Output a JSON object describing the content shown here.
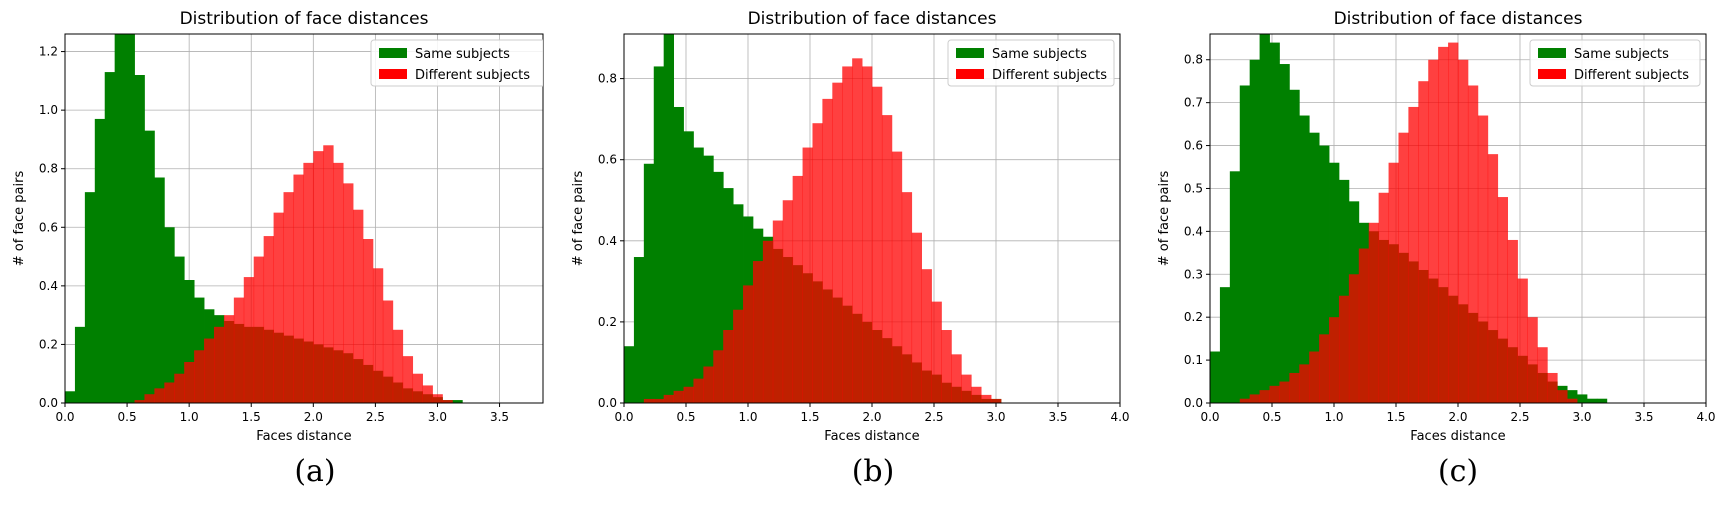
{
  "chart_data": [
    {
      "type": "histogram",
      "title": "Distribution of face distances",
      "xlabel": "Faces distance",
      "ylabel": "# of face pairs",
      "caption": "(a)",
      "xlim": [
        0,
        3.85
      ],
      "ylim": [
        0,
        1.26
      ],
      "xticks": [
        "0.0",
        "0.5",
        "1.0",
        "1.5",
        "2.0",
        "2.5",
        "3.0",
        "3.5"
      ],
      "xtick_values": [
        0,
        0.5,
        1,
        1.5,
        2,
        2.5,
        3,
        3.5
      ],
      "yticks": [
        "0.0",
        "0.2",
        "0.4",
        "0.6",
        "0.8",
        "1.0",
        "1.2"
      ],
      "ytick_values": [
        0,
        0.2,
        0.4,
        0.6,
        0.8,
        1.0,
        1.2
      ],
      "grid": true,
      "legend_position": "top-right",
      "bin_width": 0.08,
      "series": [
        {
          "name": "Same subjects",
          "color": "#008000",
          "opacity": 1.0,
          "x_start": 0.0,
          "values": [
            0.04,
            0.26,
            0.72,
            0.97,
            1.13,
            1.29,
            1.34,
            1.12,
            0.93,
            0.77,
            0.6,
            0.5,
            0.42,
            0.36,
            0.32,
            0.3,
            0.28,
            0.27,
            0.26,
            0.26,
            0.25,
            0.24,
            0.23,
            0.22,
            0.21,
            0.2,
            0.19,
            0.18,
            0.17,
            0.15,
            0.13,
            0.11,
            0.09,
            0.07,
            0.05,
            0.04,
            0.03,
            0.02,
            0.01,
            0.01,
            0.0,
            0.0,
            0.0,
            0.0,
            0.0,
            0.0,
            0.0,
            0.0
          ]
        },
        {
          "name": "Different subjects",
          "color": "#ff0000",
          "opacity": 0.75,
          "x_start": 0.0,
          "values": [
            0.0,
            0.0,
            0.0,
            0.0,
            0.0,
            0.0,
            0.0,
            0.01,
            0.03,
            0.05,
            0.07,
            0.1,
            0.14,
            0.18,
            0.22,
            0.26,
            0.3,
            0.36,
            0.43,
            0.5,
            0.57,
            0.65,
            0.72,
            0.78,
            0.82,
            0.86,
            0.88,
            0.82,
            0.75,
            0.66,
            0.56,
            0.46,
            0.35,
            0.25,
            0.16,
            0.1,
            0.06,
            0.03,
            0.01,
            0.0,
            0.0,
            0.0,
            0.0,
            0.0,
            0.0,
            0.0,
            0.0,
            0.0
          ]
        }
      ]
    },
    {
      "type": "histogram",
      "title": "Distribution of face distances",
      "xlabel": "Faces distance",
      "ylabel": "# of face pairs",
      "caption": "(b)",
      "xlim": [
        0,
        4.0
      ],
      "ylim": [
        0,
        0.91
      ],
      "xticks": [
        "0.0",
        "0.5",
        "1.0",
        "1.5",
        "2.0",
        "2.5",
        "3.0",
        "3.5",
        "4.0"
      ],
      "xtick_values": [
        0,
        0.5,
        1,
        1.5,
        2,
        2.5,
        3,
        3.5,
        4
      ],
      "yticks": [
        "0.0",
        "0.2",
        "0.4",
        "0.6",
        "0.8"
      ],
      "ytick_values": [
        0,
        0.2,
        0.4,
        0.6,
        0.8
      ],
      "grid": true,
      "legend_position": "top-right",
      "bin_width": 0.08,
      "series": [
        {
          "name": "Same subjects",
          "color": "#008000",
          "opacity": 1.0,
          "x_start": 0.0,
          "values": [
            0.14,
            0.36,
            0.59,
            0.83,
            0.92,
            0.73,
            0.67,
            0.63,
            0.61,
            0.57,
            0.53,
            0.49,
            0.46,
            0.43,
            0.41,
            0.38,
            0.36,
            0.34,
            0.32,
            0.3,
            0.28,
            0.26,
            0.24,
            0.22,
            0.2,
            0.18,
            0.16,
            0.14,
            0.12,
            0.1,
            0.08,
            0.07,
            0.05,
            0.04,
            0.03,
            0.02,
            0.01,
            0.01,
            0.0,
            0.0,
            0.0,
            0.0,
            0.0,
            0.0,
            0.0,
            0.0,
            0.0,
            0.0,
            0.0,
            0.0
          ]
        },
        {
          "name": "Different subjects",
          "color": "#ff0000",
          "opacity": 0.75,
          "x_start": 0.0,
          "values": [
            0.0,
            0.0,
            0.01,
            0.01,
            0.02,
            0.03,
            0.04,
            0.06,
            0.09,
            0.13,
            0.18,
            0.23,
            0.29,
            0.35,
            0.4,
            0.45,
            0.5,
            0.56,
            0.63,
            0.69,
            0.75,
            0.79,
            0.83,
            0.85,
            0.83,
            0.78,
            0.71,
            0.62,
            0.52,
            0.42,
            0.33,
            0.25,
            0.18,
            0.12,
            0.07,
            0.04,
            0.02,
            0.01,
            0.0,
            0.0,
            0.0,
            0.0,
            0.0,
            0.0,
            0.0,
            0.0,
            0.0,
            0.0,
            0.0,
            0.0
          ]
        }
      ]
    },
    {
      "type": "histogram",
      "title": "Distribution of face distances",
      "xlabel": "Faces distance",
      "ylabel": "# of face pairs",
      "caption": "(c)",
      "xlim": [
        0,
        4.0
      ],
      "ylim": [
        0,
        0.86
      ],
      "xticks": [
        "0.0",
        "0.5",
        "1.0",
        "1.5",
        "2.0",
        "2.5",
        "3.0",
        "3.5",
        "4.0"
      ],
      "xtick_values": [
        0,
        0.5,
        1,
        1.5,
        2,
        2.5,
        3,
        3.5,
        4
      ],
      "yticks": [
        "0.0",
        "0.1",
        "0.2",
        "0.3",
        "0.4",
        "0.5",
        "0.6",
        "0.7",
        "0.8"
      ],
      "ytick_values": [
        0,
        0.1,
        0.2,
        0.3,
        0.4,
        0.5,
        0.6,
        0.7,
        0.8
      ],
      "grid": true,
      "legend_position": "top-right",
      "bin_width": 0.08,
      "series": [
        {
          "name": "Same subjects",
          "color": "#008000",
          "opacity": 1.0,
          "x_start": 0.0,
          "values": [
            0.12,
            0.27,
            0.54,
            0.74,
            0.8,
            0.86,
            0.84,
            0.79,
            0.73,
            0.67,
            0.63,
            0.6,
            0.56,
            0.52,
            0.47,
            0.42,
            0.4,
            0.38,
            0.37,
            0.35,
            0.33,
            0.31,
            0.29,
            0.27,
            0.25,
            0.23,
            0.21,
            0.19,
            0.17,
            0.15,
            0.13,
            0.11,
            0.09,
            0.07,
            0.05,
            0.04,
            0.03,
            0.02,
            0.01,
            0.01,
            0.0,
            0.0,
            0.0,
            0.0,
            0.0,
            0.0,
            0.0,
            0.0,
            0.0,
            0.0
          ]
        },
        {
          "name": "Different subjects",
          "color": "#ff0000",
          "opacity": 0.75,
          "x_start": 0.0,
          "values": [
            0.0,
            0.0,
            0.0,
            0.01,
            0.02,
            0.03,
            0.04,
            0.05,
            0.07,
            0.09,
            0.12,
            0.16,
            0.2,
            0.25,
            0.3,
            0.36,
            0.42,
            0.49,
            0.56,
            0.63,
            0.69,
            0.75,
            0.8,
            0.83,
            0.84,
            0.8,
            0.74,
            0.67,
            0.58,
            0.48,
            0.38,
            0.29,
            0.2,
            0.13,
            0.07,
            0.03,
            0.01,
            0.0,
            0.0,
            0.0,
            0.0,
            0.0,
            0.0,
            0.0,
            0.0,
            0.0,
            0.0,
            0.0,
            0.0,
            0.0
          ]
        }
      ]
    }
  ]
}
